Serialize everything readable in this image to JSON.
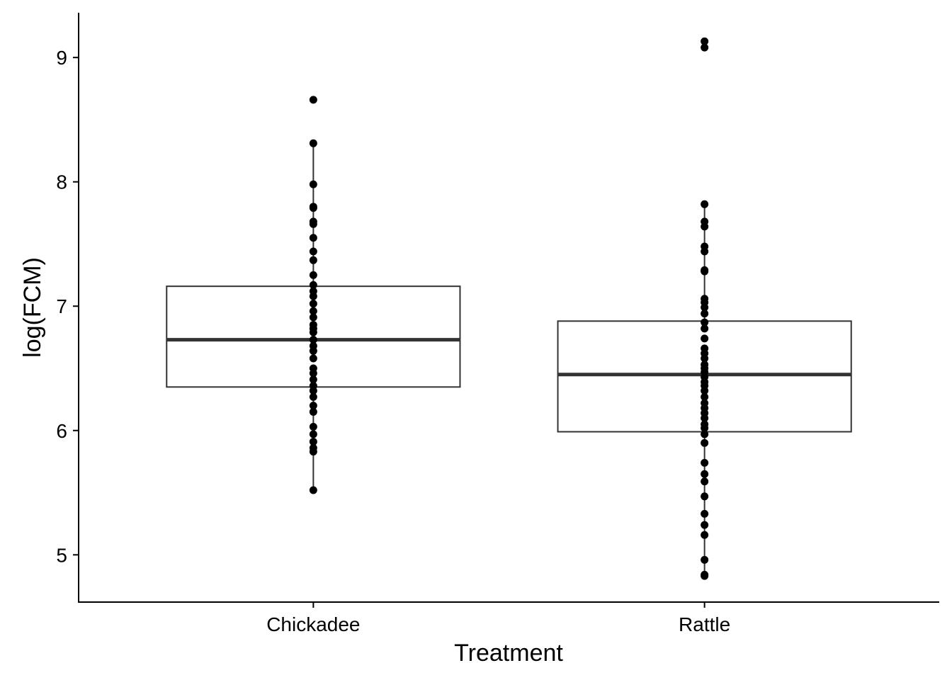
{
  "chart_data": {
    "type": "boxplot",
    "title": "",
    "xlabel": "Treatment",
    "ylabel": "log(FCM)",
    "ylim": [
      4.62,
      9.36
    ],
    "yticks": [
      5,
      6,
      7,
      8,
      9
    ],
    "grid": false,
    "legend": "none",
    "categories": [
      "Chickadee",
      "Rattle"
    ],
    "boxes": [
      {
        "category": "Chickadee",
        "q1": 6.35,
        "median": 6.73,
        "q3": 7.16,
        "whisker_low": 5.52,
        "whisker_high": 8.31
      },
      {
        "category": "Rattle",
        "q1": 5.99,
        "median": 6.45,
        "q3": 6.88,
        "whisker_low": 4.83,
        "whisker_high": 7.82
      }
    ],
    "points": [
      {
        "category": "Chickadee",
        "values": [
          8.66,
          8.31,
          7.98,
          7.8,
          7.79,
          7.68,
          7.66,
          7.55,
          7.44,
          7.37,
          7.25,
          7.17,
          7.12,
          7.08,
          7.02,
          6.96,
          6.91,
          6.85,
          6.82,
          6.79,
          6.73,
          6.68,
          6.64,
          6.58,
          6.5,
          6.46,
          6.41,
          6.36,
          6.32,
          6.27,
          6.2,
          6.15,
          6.03,
          5.97,
          5.91,
          5.86,
          5.83,
          5.52
        ]
      },
      {
        "category": "Rattle",
        "values": [
          9.13,
          9.08,
          7.82,
          7.68,
          7.64,
          7.48,
          7.44,
          7.29,
          7.28,
          7.06,
          7.03,
          6.99,
          6.94,
          6.87,
          6.82,
          6.74,
          6.66,
          6.62,
          6.58,
          6.53,
          6.5,
          6.47,
          6.43,
          6.39,
          6.36,
          6.32,
          6.27,
          6.22,
          6.18,
          6.14,
          6.1,
          6.05,
          6.02,
          5.97,
          5.9,
          5.74,
          5.65,
          5.59,
          5.47,
          5.33,
          5.24,
          5.16,
          4.96,
          4.84,
          4.83
        ]
      }
    ]
  },
  "colors": {
    "background": "#ffffff",
    "axis": "#000000",
    "box_line": "#333333",
    "point": "#000000"
  }
}
